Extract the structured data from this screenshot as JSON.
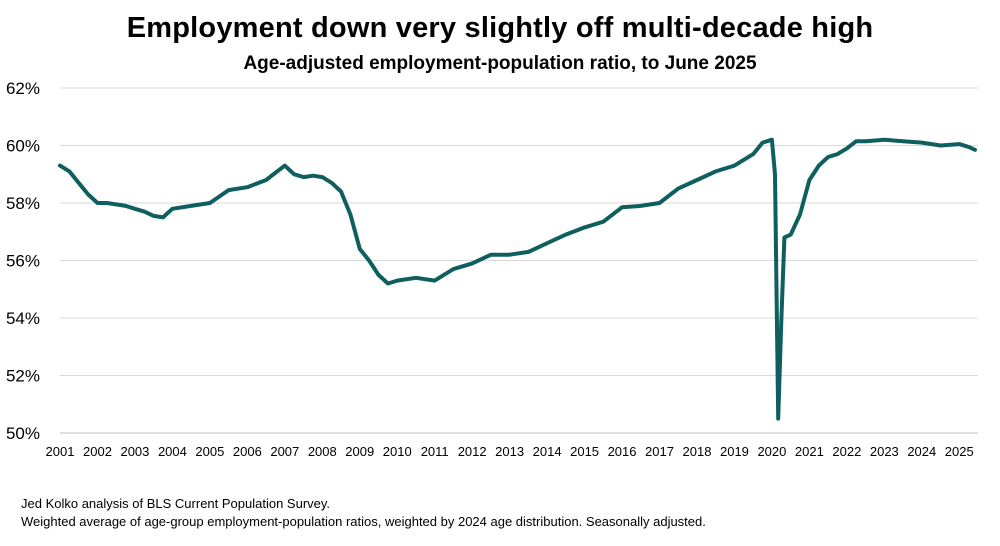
{
  "title": "Employment down very slightly off multi-decade high",
  "subtitle": "Age-adjusted employment-population ratio, to June 2025",
  "footnotes": [
    "Jed Kolko analysis of BLS Current Population Survey.",
    "Weighted average of age-group employment-population ratios, weighted by 2024 age distribution. Seasonally adjusted."
  ],
  "colors": {
    "line": "#0f5f5e",
    "grid": "#d9d9d9"
  },
  "chart_data": {
    "type": "line",
    "title": "Employment down very slightly off multi-decade high",
    "subtitle": "Age-adjusted employment-population ratio, to June 2025",
    "xlabel": "",
    "ylabel": "",
    "ylim": [
      50,
      62
    ],
    "xlim": [
      2001.0,
      2025.5
    ],
    "grid": true,
    "y_ticks": [
      "50%",
      "52%",
      "54%",
      "56%",
      "58%",
      "60%",
      "62%"
    ],
    "x_ticks": [
      "2001",
      "2002",
      "2003",
      "2004",
      "2005",
      "2006",
      "2007",
      "2008",
      "2009",
      "2010",
      "2011",
      "2012",
      "2013",
      "2014",
      "2015",
      "2016",
      "2017",
      "2018",
      "2019",
      "2020",
      "2021",
      "2022",
      "2023",
      "2024",
      "2025"
    ],
    "series": [
      {
        "x": [
          2001.0,
          2001.25,
          2001.5,
          2001.75,
          2002.0,
          2002.25,
          2002.5,
          2002.75,
          2003.0,
          2003.25,
          2003.5,
          2003.75,
          2004.0,
          2004.5,
          2005.0,
          2005.5,
          2006.0,
          2006.5,
          2007.0,
          2007.25,
          2007.5,
          2007.75,
          2008.0,
          2008.25,
          2008.5,
          2008.75,
          2009.0,
          2009.25,
          2009.5,
          2009.75,
          2010.0,
          2010.5,
          2011.0,
          2011.5,
          2012.0,
          2012.5,
          2013.0,
          2013.5,
          2014.0,
          2014.5,
          2015.0,
          2015.5,
          2016.0,
          2016.5,
          2017.0,
          2017.5,
          2018.0,
          2018.5,
          2019.0,
          2019.5,
          2019.75,
          2020.0,
          2020.083,
          2020.167,
          2020.25,
          2020.333,
          2020.5,
          2020.75,
          2021.0,
          2021.25,
          2021.5,
          2021.75,
          2022.0,
          2022.25,
          2022.5,
          2023.0,
          2023.5,
          2024.0,
          2024.5,
          2025.0,
          2025.25,
          2025.42
        ],
        "y": [
          59.3,
          59.1,
          58.7,
          58.3,
          58.0,
          58.0,
          57.95,
          57.9,
          57.8,
          57.7,
          57.55,
          57.5,
          57.8,
          57.9,
          58.0,
          58.45,
          58.55,
          58.8,
          59.3,
          59.0,
          58.9,
          58.95,
          58.9,
          58.7,
          58.4,
          57.6,
          56.4,
          56.0,
          55.5,
          55.2,
          55.3,
          55.4,
          55.3,
          55.7,
          55.9,
          56.2,
          56.2,
          56.3,
          56.6,
          56.9,
          57.15,
          57.35,
          57.85,
          57.9,
          58.0,
          58.5,
          58.8,
          59.1,
          59.3,
          59.7,
          60.1,
          60.2,
          59.0,
          50.5,
          53.9,
          56.8,
          56.9,
          57.6,
          58.8,
          59.3,
          59.6,
          59.7,
          59.9,
          60.15,
          60.15,
          60.2,
          60.15,
          60.1,
          60.0,
          60.05,
          59.95,
          59.85
        ]
      }
    ]
  }
}
